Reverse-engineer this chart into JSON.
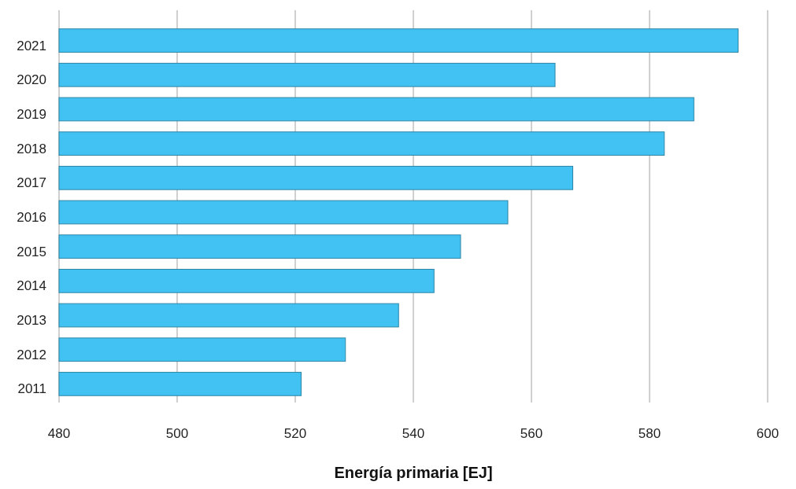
{
  "chart_data": {
    "type": "bar",
    "orientation": "horizontal",
    "xlabel": "Energía primaria [EJ]",
    "categories": [
      "2021",
      "2020",
      "2019",
      "2018",
      "2017",
      "2016",
      "2015",
      "2014",
      "2013",
      "2012",
      "2011"
    ],
    "values": [
      595,
      564,
      587.5,
      582.5,
      567,
      556,
      548,
      543.5,
      537.5,
      528.5,
      521
    ],
    "color": "#42c2f2",
    "xlim": [
      480,
      600
    ],
    "xticks": [
      480,
      500,
      520,
      540,
      560,
      580,
      600
    ],
    "grid": "x"
  }
}
